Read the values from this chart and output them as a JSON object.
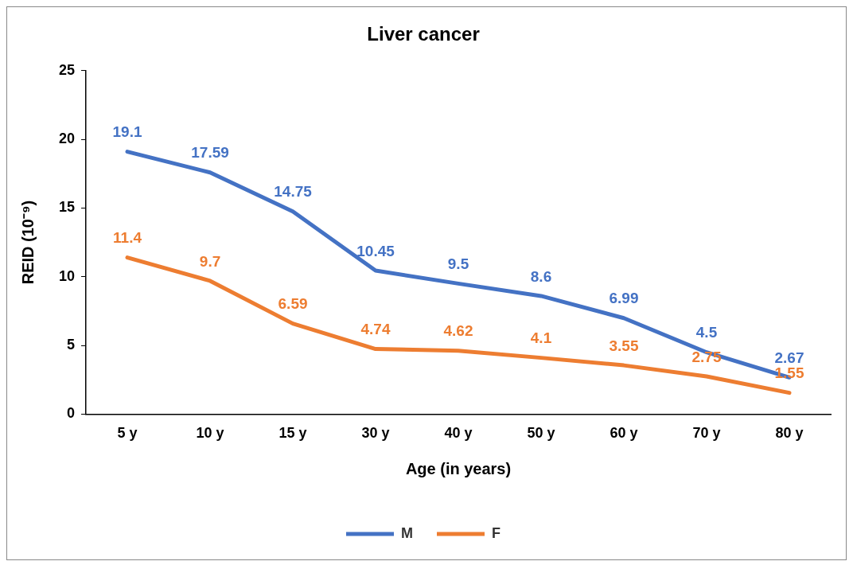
{
  "chart_data": {
    "type": "line",
    "title": "Liver cancer",
    "xlabel": "Age (in years)",
    "ylabel": "REID (10⁻⁹)",
    "categories": [
      "5 y",
      "10 y",
      "15 y",
      "30 y",
      "40 y",
      "50 y",
      "60 y",
      "70 y",
      "80 y"
    ],
    "series": [
      {
        "name": "M",
        "color": "#4472c4",
        "values": [
          19.1,
          17.59,
          14.75,
          10.45,
          9.5,
          8.6,
          6.99,
          4.5,
          2.67
        ]
      },
      {
        "name": "F",
        "color": "#ed7d31",
        "values": [
          11.4,
          9.7,
          6.59,
          4.74,
          4.62,
          4.1,
          3.55,
          2.75,
          1.55
        ]
      }
    ],
    "ylim": [
      0,
      25
    ],
    "yticks": [
      0,
      5,
      10,
      15,
      20,
      25
    ],
    "grid": false,
    "legend": "bottom",
    "marker": "none",
    "line_style": "solid",
    "data_labels": true
  }
}
